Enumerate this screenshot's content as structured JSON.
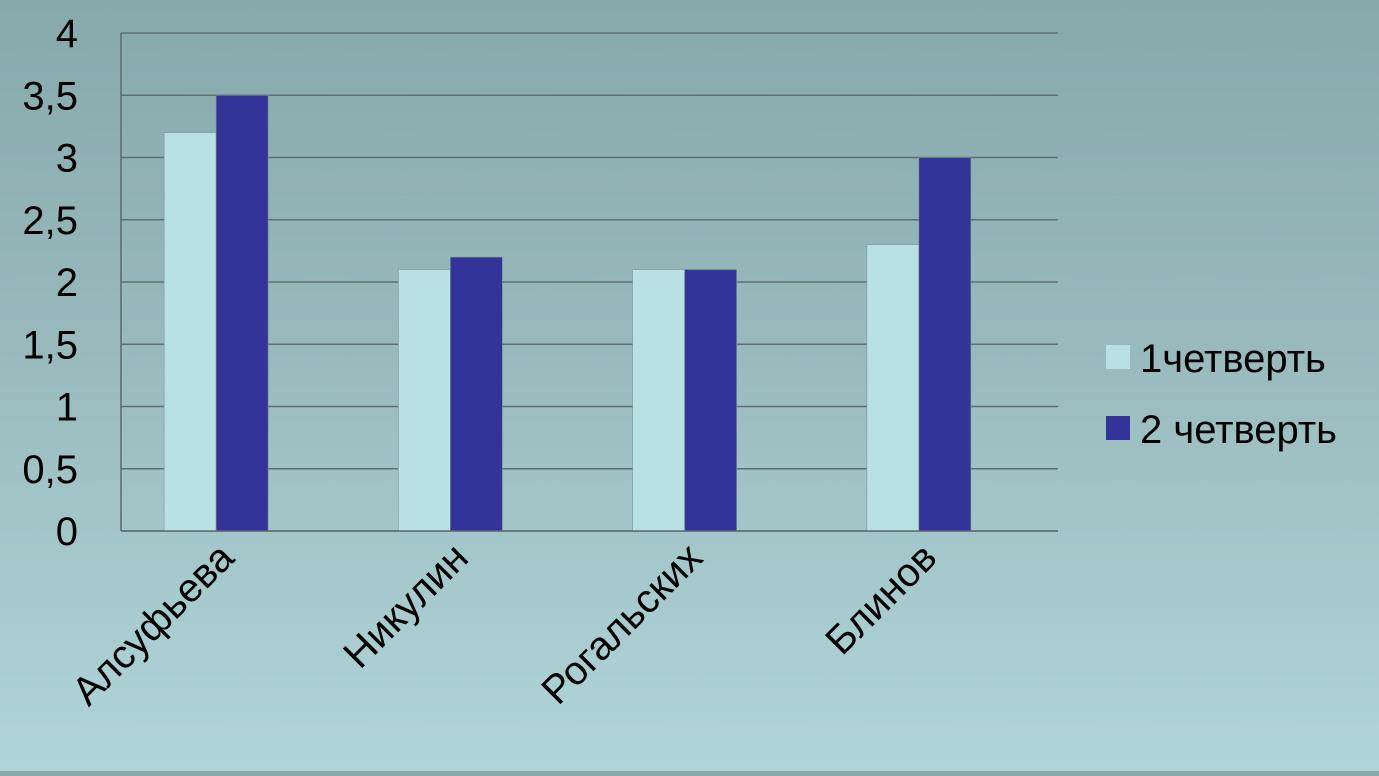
{
  "chart_data": {
    "type": "bar",
    "title": "",
    "xlabel": "",
    "ylabel": "",
    "categories": [
      "Алсуфьева",
      "Никулин",
      "Рогальских",
      "Блинов"
    ],
    "series": [
      {
        "name": "1четверть",
        "values": [
          3.2,
          2.1,
          2.1,
          2.3
        ]
      },
      {
        "name": "2 четверть",
        "values": [
          3.5,
          2.2,
          2.1,
          3.0
        ]
      }
    ],
    "ylim": [
      0,
      4
    ],
    "yticks": [
      "0",
      "0,5",
      "1",
      "1,5",
      "2",
      "2,5",
      "3",
      "3,5",
      "4"
    ],
    "grid": true,
    "legend_position": "right",
    "colors": {
      "series_1": "#b9e0e3",
      "series_2": "#333399",
      "grid": "#5e6f71",
      "axis": "#5e6f71"
    }
  }
}
